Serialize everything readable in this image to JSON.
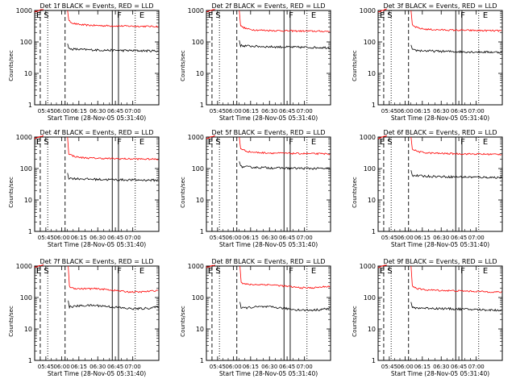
{
  "figure": {
    "start_time_label": "Start Time (28-Nov-05 05:31:40)",
    "ylabel": "Counts/sec",
    "xticks": [
      "05:45",
      "06:00",
      "06:15",
      "06:30",
      "06:45",
      "07:00"
    ],
    "yticks": [
      "1",
      "10",
      "100",
      "1000"
    ],
    "vline_labels": [
      "E",
      "S",
      "F",
      "E"
    ],
    "colors": {
      "events": "#000000",
      "lld": "#ff0000"
    }
  },
  "chart_data": [
    {
      "type": "line",
      "title": "Det 1f BLACK = Events, RED = LLD",
      "ylim": [
        1,
        1000
      ],
      "yscale": "log",
      "series": [
        {
          "name": "LLD",
          "color": "red",
          "shape": "A",
          "level": 330
        },
        {
          "name": "Events",
          "color": "black",
          "shape": "A",
          "level": 55
        }
      ]
    },
    {
      "type": "line",
      "title": "Det 2f BLACK = Events, RED = LLD",
      "ylim": [
        1,
        1000
      ],
      "yscale": "log",
      "series": [
        {
          "name": "LLD",
          "color": "red",
          "shape": "A",
          "level": 230
        },
        {
          "name": "Events",
          "color": "black",
          "shape": "A",
          "level": 70
        }
      ]
    },
    {
      "type": "line",
      "title": "Det 3f BLACK = Events, RED = LLD",
      "ylim": [
        1,
        1000
      ],
      "yscale": "log",
      "series": [
        {
          "name": "LLD",
          "color": "red",
          "shape": "A",
          "level": 240
        },
        {
          "name": "Events",
          "color": "black",
          "shape": "A",
          "level": 50
        }
      ]
    },
    {
      "type": "line",
      "title": "Det 4f BLACK = Events, RED = LLD",
      "ylim": [
        1,
        1000
      ],
      "yscale": "log",
      "series": [
        {
          "name": "LLD",
          "color": "red",
          "shape": "A",
          "level": 210
        },
        {
          "name": "Events",
          "color": "black",
          "shape": "A",
          "level": 45
        }
      ]
    },
    {
      "type": "line",
      "title": "Det 5f BLACK = Events, RED = LLD",
      "ylim": [
        1,
        1000
      ],
      "yscale": "log",
      "series": [
        {
          "name": "LLD",
          "color": "red",
          "shape": "A",
          "level": 310
        },
        {
          "name": "Events",
          "color": "black",
          "shape": "A",
          "level": 105
        }
      ]
    },
    {
      "type": "line",
      "title": "Det 6f BLACK = Events, RED = LLD",
      "ylim": [
        1,
        1000
      ],
      "yscale": "log",
      "series": [
        {
          "name": "LLD",
          "color": "red",
          "shape": "A",
          "level": 300
        },
        {
          "name": "Events",
          "color": "black",
          "shape": "A",
          "level": 55
        }
      ]
    },
    {
      "type": "line",
      "title": "Det 7f BLACK = Events, RED = LLD",
      "ylim": [
        1,
        1000
      ],
      "yscale": "log",
      "series": [
        {
          "name": "LLD",
          "color": "red",
          "shape": "B",
          "level": 170
        },
        {
          "name": "Events",
          "color": "black",
          "shape": "B",
          "level": 50
        }
      ]
    },
    {
      "type": "line",
      "title": "Det 8f BLACK = Events, RED = LLD",
      "ylim": [
        1,
        1000
      ],
      "yscale": "log",
      "series": [
        {
          "name": "LLD",
          "color": "red",
          "shape": "B",
          "level": 230
        },
        {
          "name": "Events",
          "color": "black",
          "shape": "B",
          "level": 45
        }
      ]
    },
    {
      "type": "line",
      "title": "Det 9f BLACK = Events, RED = LLD",
      "ylim": [
        1,
        1000
      ],
      "yscale": "log",
      "series": [
        {
          "name": "LLD",
          "color": "red",
          "shape": "C",
          "level": 170
        },
        {
          "name": "Events",
          "color": "black",
          "shape": "C",
          "level": 45
        }
      ]
    }
  ]
}
